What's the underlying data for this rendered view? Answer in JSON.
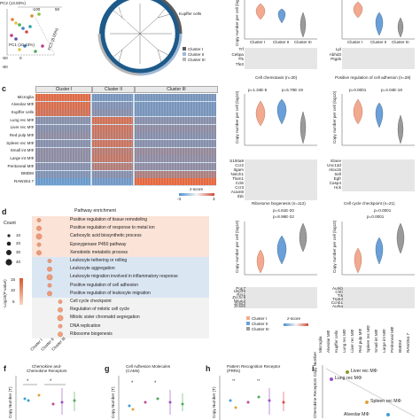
{
  "panel_a": {
    "axis_pc1": "PC1 (10.43%)",
    "axis_pc2": "PC2 (13.83%)",
    "axis_pc3": "PC3 (8.05%)",
    "tick_m100": "-100",
    "tick_50": "50",
    "tick_m50": "-50",
    "tick_0": "0",
    "tick_m80": "-80"
  },
  "panel_b": {
    "labels": [
      "Microglia",
      "Large int MΦ",
      "Spleen",
      "Kupffer cells",
      "Cluster I",
      "Cluster II",
      "Cluster III"
    ],
    "legend": [
      "Cluster I",
      "Cluster II",
      "Cluster III"
    ]
  },
  "panel_c": {
    "letter": "c",
    "clusters": [
      "Cluster I",
      "Cluster II",
      "Cluster III"
    ],
    "rows": [
      "Microglia",
      "Alveolar MΦ",
      "Kupffer cells",
      "Lung rec MΦ",
      "Liver rec MΦ",
      "Red pulp MΦ",
      "Spleen rec MΦ",
      "Small int MΦ",
      "Large int MΦ",
      "Peritoneal MΦ",
      "BMDM",
      "RAW264.7"
    ],
    "zscore_label": "z-score",
    "zscore_min": "-3",
    "zscore_max": "3"
  },
  "panel_d": {
    "letter": "d",
    "pathway_title": "Pathway enrichment",
    "count_label": "Count",
    "count_values": [
      "10",
      "20",
      "30",
      "40"
    ],
    "pval_label": "-Log10(P value)",
    "pval_values": [
      "15",
      "10",
      "5"
    ],
    "x_labels": [
      "Cluster I",
      "Cluster II",
      "Cluster III"
    ],
    "pathways_I": [
      "Positive regulation of tissue remodeling",
      "Positive regulation of response to metal ion",
      "Carboxylic acid biosynthetic process",
      "Epoxygenase P450 pathway",
      "Xenobiotic metabolic process"
    ],
    "pathways_II": [
      "Leukocyte tethering or rolling",
      "Leukocyte aggregation",
      "Leukocyte migration involved in inflammatory response",
      "Positive regulation of cell adhesion",
      "Positive regulation of leukocyte migration"
    ],
    "pathways_III": [
      "Cell cycle checkpoint",
      "Regulation of mitotic cell cycle",
      "Mitotic sister chromatid segregation",
      "DNA replication",
      "Ribosome biogenesis"
    ]
  },
  "panel_e": {
    "top_genes_left": [
      "Trf",
      "Cebpa",
      "Tfs",
      "Tfe3"
    ],
    "top_genes_right": [
      "Lpl",
      "Abhd3",
      "Ptgds"
    ],
    "chemotaxis_title": "Cell chemotaxis (n=30)",
    "adhesion_title": "Positive regulation of cell adhesion (n=28)",
    "ylabel": "Copy number per cell (log10)",
    "pvals_chemotaxis": [
      "p=1.34E-5",
      "p=5.70E-19"
    ],
    "pvals_adhesion": [
      "p=0.0001",
      "p=4.04E-18"
    ],
    "genes_chemotaxis": [
      "S100a9",
      "Ccr2",
      "Itgam",
      "Notch1",
      "Tlam1",
      "Ccl6",
      "Ccr3",
      "Acam8",
      "Il1b"
    ],
    "genes_adhesion": [
      "Elane",
      "Unc13d",
      "Alox15",
      "Sell",
      "Egfr",
      "Casp4",
      "Hck"
    ],
    "ribosome_title": "Ribosome biogenesis (n=112)",
    "cellcycle_title": "Cell cycle checkpoint (n=21)",
    "pvals_ribosome": [
      "p=4.61E-20",
      "p=8.96E-22"
    ],
    "pvals_cellcycle": [
      "p=0.0001",
      "p=0.0001"
    ],
    "genes_ribosome": [
      "Pop7",
      "Usp36",
      "Rrs1",
      "Zcchc9",
      "Nsun2",
      "Znhit3",
      "Znhit6"
    ],
    "genes_cellcycle": [
      "Aurkb",
      "Chfr",
      "Ttk",
      "Trp53",
      "Ccnb1",
      "Aurka"
    ],
    "cluster_labels": [
      "Cluster I",
      "Cluster II",
      "Cluster III"
    ],
    "bottom_rows": [
      "Microglia",
      "Alveolar MΦ",
      "Kupffer cells",
      "Lung rec MΦ",
      "Liver rec MΦ",
      "Red pulp MΦ",
      "Spleen rec MΦ",
      "Small int MΦ",
      "Large int MΦ",
      "Peritoneal MΦ",
      "BMDM",
      "RAW264.7"
    ],
    "legend": [
      "Cluster I",
      "Cluster II",
      "Cluster III"
    ],
    "zscore_label": "z-score"
  },
  "panel_f": {
    "letter": "f",
    "title": "Chemokine and-\nChemokine Receptors",
    "ylabel": "Copy Number (T)"
  },
  "panel_g": {
    "letter": "g",
    "title": "Cell Adhesion Molecules\n(CAMs)",
    "ylabel": "Copy Number (T)"
  },
  "panel_h": {
    "letter": "h",
    "title": "Pattern Recognition Receptor\n(PRRs)",
    "ylabel": "Copy Number (T)",
    "sig": "**"
  },
  "panel_i": {
    "letter": "i",
    "ylabel": "Chemokine Receptors Copy Number",
    "points": [
      "Liver rec MΦ",
      "Lung rec MΦ",
      "Spleen rec MΦ",
      "Alveolar MΦ"
    ]
  },
  "colors": {
    "cluster1": "#f2a98f",
    "cluster2": "#6a9fd8",
    "cluster3": "#8e8e8e",
    "heat_high": "#c94f3d",
    "heat_low": "#6aa4d4"
  }
}
